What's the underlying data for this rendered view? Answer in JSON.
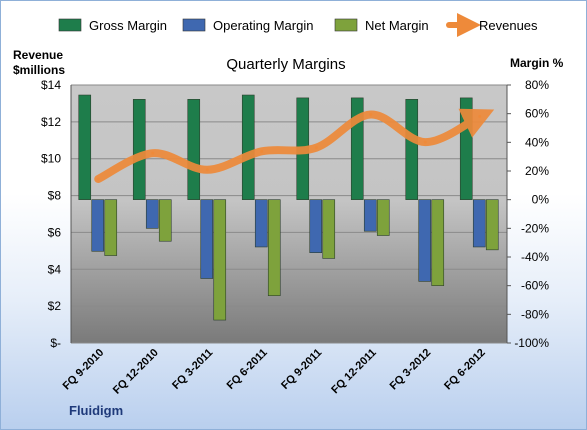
{
  "chart_data": {
    "type": "bar",
    "title": "Quarterly Margins",
    "categories": [
      "FQ 9-2010",
      "FQ 12-2010",
      "FQ 3-2011",
      "FQ 6-2011",
      "FQ 9-2011",
      "FQ 12-2011",
      "FQ 3-2012",
      "FQ 6-2012"
    ],
    "series": [
      {
        "name": "Gross Margin",
        "axis": "right",
        "color": "#1e7d4b",
        "values": [
          73,
          70,
          70,
          73,
          71,
          71,
          70,
          71
        ]
      },
      {
        "name": "Operating Margin",
        "axis": "right",
        "color": "#3f68b0",
        "values": [
          -36,
          -20,
          -55,
          -33,
          -37,
          -22,
          -57,
          -33
        ]
      },
      {
        "name": "Net Margin",
        "axis": "right",
        "color": "#7ea23c",
        "values": [
          -39,
          -29,
          -84,
          -67,
          -41,
          -25,
          -60,
          -35
        ]
      },
      {
        "name": "Revenues",
        "type": "line",
        "axis": "left",
        "color": "#ee8a3a",
        "values": [
          8.9,
          10.3,
          9.4,
          10.4,
          10.6,
          12.4,
          10.9,
          12.3
        ]
      }
    ],
    "left_axis": {
      "label_line1": "Revenue",
      "label_line2": "$millions",
      "ylim": [
        0,
        14
      ],
      "tick_labels": [
        "$14",
        "$12",
        "$10",
        "$8",
        "$6",
        "$4",
        "$2",
        "$-"
      ]
    },
    "right_axis": {
      "label": "Margin %",
      "ylim": [
        -100,
        80
      ],
      "tick_labels": [
        "80%",
        "60%",
        "40%",
        "20%",
        "0%",
        "-20%",
        "-40%",
        "-60%",
        "-80%",
        "-100%"
      ]
    },
    "legend_position": "top",
    "grid": true
  },
  "company_label": "Fluidigm"
}
